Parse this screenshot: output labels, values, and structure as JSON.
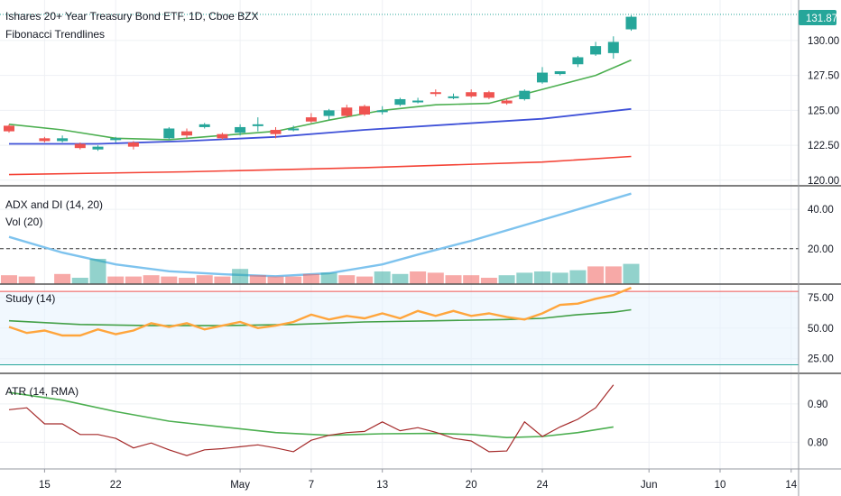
{
  "header": {
    "title": "Ishares 20+ Year Treasury Bond ETF, 1D, Cboe BZX",
    "subtitle": "Fibonacci Trendlines"
  },
  "colors": {
    "up": "#26a69a",
    "down": "#ef5350",
    "ma_green": "#4caf50",
    "ma_blue": "#3f51d8",
    "ma_red": "#f44336",
    "adx": "#7ec3ee",
    "study_orange": "#ffa53c",
    "study_green": "#43a047",
    "atr_brown": "#a52a2a",
    "atr_green": "#4caf50",
    "price_label_bg": "#26a69a"
  },
  "chart_data": [
    {
      "type": "candlestick",
      "pane": "price",
      "title": "Ishares 20+ Year Treasury Bond ETF, 1D, Cboe BZX",
      "yticks": [
        "120.00",
        "122.50",
        "125.00",
        "127.50",
        "130.00"
      ],
      "ylim": [
        119.6,
        132.9
      ],
      "last_price": "131.87",
      "candles": [
        {
          "x": 0,
          "o": 123.9,
          "h": 124.0,
          "l": 123.4,
          "c": 123.5
        },
        {
          "x": 2,
          "o": 123.0,
          "h": 123.1,
          "l": 122.7,
          "c": 122.8
        },
        {
          "x": 3,
          "o": 122.8,
          "h": 123.2,
          "l": 122.7,
          "c": 123.0
        },
        {
          "x": 4,
          "o": 122.6,
          "h": 122.7,
          "l": 122.2,
          "c": 122.3
        },
        {
          "x": 5,
          "o": 122.2,
          "h": 122.5,
          "l": 122.1,
          "c": 122.4
        },
        {
          "x": 6,
          "o": 122.9,
          "h": 123.1,
          "l": 122.7,
          "c": 123.0
        },
        {
          "x": 7,
          "o": 122.7,
          "h": 122.8,
          "l": 122.2,
          "c": 122.4
        },
        {
          "x": 9,
          "o": 123.0,
          "h": 123.8,
          "l": 122.9,
          "c": 123.7
        },
        {
          "x": 10,
          "o": 123.5,
          "h": 123.7,
          "l": 123.0,
          "c": 123.2
        },
        {
          "x": 11,
          "o": 123.8,
          "h": 124.1,
          "l": 123.7,
          "c": 124.0
        },
        {
          "x": 12,
          "o": 123.3,
          "h": 123.4,
          "l": 122.9,
          "c": 123.0
        },
        {
          "x": 13,
          "o": 123.4,
          "h": 124.0,
          "l": 123.2,
          "c": 123.8
        },
        {
          "x": 14,
          "o": 123.9,
          "h": 124.5,
          "l": 123.5,
          "c": 124.0
        },
        {
          "x": 15,
          "o": 123.6,
          "h": 123.8,
          "l": 123.0,
          "c": 123.3
        },
        {
          "x": 16,
          "o": 123.6,
          "h": 123.9,
          "l": 123.5,
          "c": 123.7
        },
        {
          "x": 17,
          "o": 124.5,
          "h": 124.8,
          "l": 124.1,
          "c": 124.2
        },
        {
          "x": 18,
          "o": 124.6,
          "h": 125.1,
          "l": 124.3,
          "c": 125.0
        },
        {
          "x": 19,
          "o": 125.2,
          "h": 125.4,
          "l": 124.5,
          "c": 124.6
        },
        {
          "x": 20,
          "o": 125.3,
          "h": 125.4,
          "l": 124.6,
          "c": 124.7
        },
        {
          "x": 21,
          "o": 125.0,
          "h": 125.3,
          "l": 124.7,
          "c": 125.0
        },
        {
          "x": 22,
          "o": 125.4,
          "h": 125.9,
          "l": 125.3,
          "c": 125.8
        },
        {
          "x": 23,
          "o": 125.7,
          "h": 125.9,
          "l": 125.5,
          "c": 125.7
        },
        {
          "x": 24,
          "o": 126.3,
          "h": 126.5,
          "l": 126.0,
          "c": 126.2
        },
        {
          "x": 25,
          "o": 126.0,
          "h": 126.2,
          "l": 125.8,
          "c": 126.0
        },
        {
          "x": 26,
          "o": 126.3,
          "h": 126.5,
          "l": 125.9,
          "c": 126.0
        },
        {
          "x": 27,
          "o": 126.3,
          "h": 126.4,
          "l": 125.8,
          "c": 125.9
        },
        {
          "x": 28,
          "o": 125.7,
          "h": 125.8,
          "l": 125.4,
          "c": 125.5
        },
        {
          "x": 29,
          "o": 125.8,
          "h": 126.5,
          "l": 125.7,
          "c": 126.4
        },
        {
          "x": 30,
          "o": 127.0,
          "h": 128.1,
          "l": 126.9,
          "c": 127.7
        },
        {
          "x": 31,
          "o": 127.6,
          "h": 127.8,
          "l": 127.5,
          "c": 127.8
        },
        {
          "x": 32,
          "o": 128.3,
          "h": 128.9,
          "l": 128.1,
          "c": 128.8
        },
        {
          "x": 33,
          "o": 129.0,
          "h": 129.9,
          "l": 128.9,
          "c": 129.6
        },
        {
          "x": 34,
          "o": 129.1,
          "h": 130.3,
          "l": 128.7,
          "c": 129.9
        },
        {
          "x": 35,
          "o": 130.8,
          "h": 131.8,
          "l": 130.7,
          "c": 131.7
        }
      ],
      "ma_green": [
        [
          0,
          124.0
        ],
        [
          3,
          123.6
        ],
        [
          6,
          123.0
        ],
        [
          9,
          122.9
        ],
        [
          12,
          123.2
        ],
        [
          15,
          123.5
        ],
        [
          18,
          124.3
        ],
        [
          21,
          125.0
        ],
        [
          24,
          125.4
        ],
        [
          27,
          125.5
        ],
        [
          30,
          126.5
        ],
        [
          33,
          127.5
        ],
        [
          35,
          128.6
        ]
      ],
      "ma_blue": [
        [
          0,
          122.6
        ],
        [
          5,
          122.6
        ],
        [
          10,
          122.8
        ],
        [
          15,
          123.1
        ],
        [
          20,
          123.6
        ],
        [
          25,
          124.0
        ],
        [
          30,
          124.4
        ],
        [
          35,
          125.1
        ]
      ],
      "ma_red": [
        [
          0,
          120.4
        ],
        [
          10,
          120.6
        ],
        [
          20,
          120.9
        ],
        [
          30,
          121.3
        ],
        [
          35,
          121.7
        ]
      ]
    },
    {
      "type": "line",
      "pane": "adx",
      "title": "ADX and DI (14, 20)",
      "subtitle": "Vol (20)",
      "yticks": [
        "20.00",
        "40.00"
      ],
      "ylim": [
        2,
        52
      ],
      "threshold": 20,
      "series": [
        {
          "values": [
            [
              0,
              26
            ],
            [
              3,
              18
            ],
            [
              6,
              12
            ],
            [
              9,
              8.5
            ],
            [
              12,
              7
            ],
            [
              15,
              6
            ],
            [
              18,
              7.5
            ],
            [
              21,
              12
            ],
            [
              23,
              17
            ],
            [
              26,
              24
            ],
            [
              29,
              32
            ],
            [
              32,
              40
            ],
            [
              35,
              48
            ]
          ]
        }
      ],
      "volume": [
        {
          "x": 0,
          "v": 0.35,
          "up": false
        },
        {
          "x": 1,
          "v": 0.3,
          "up": false
        },
        {
          "x": 3,
          "v": 0.4,
          "up": false
        },
        {
          "x": 4,
          "v": 0.25,
          "up": true
        },
        {
          "x": 5,
          "v": 1.0,
          "up": true
        },
        {
          "x": 6,
          "v": 0.3,
          "up": false
        },
        {
          "x": 7,
          "v": 0.3,
          "up": false
        },
        {
          "x": 8,
          "v": 0.35,
          "up": false
        },
        {
          "x": 9,
          "v": 0.3,
          "up": false
        },
        {
          "x": 10,
          "v": 0.25,
          "up": false
        },
        {
          "x": 11,
          "v": 0.35,
          "up": false
        },
        {
          "x": 12,
          "v": 0.3,
          "up": false
        },
        {
          "x": 13,
          "v": 0.6,
          "up": true
        },
        {
          "x": 14,
          "v": 0.35,
          "up": false
        },
        {
          "x": 15,
          "v": 0.3,
          "up": false
        },
        {
          "x": 16,
          "v": 0.3,
          "up": false
        },
        {
          "x": 17,
          "v": 0.4,
          "up": false
        },
        {
          "x": 18,
          "v": 0.45,
          "up": true
        },
        {
          "x": 19,
          "v": 0.35,
          "up": false
        },
        {
          "x": 20,
          "v": 0.3,
          "up": false
        },
        {
          "x": 21,
          "v": 0.5,
          "up": true
        },
        {
          "x": 22,
          "v": 0.4,
          "up": true
        },
        {
          "x": 23,
          "v": 0.5,
          "up": false
        },
        {
          "x": 24,
          "v": 0.45,
          "up": false
        },
        {
          "x": 25,
          "v": 0.35,
          "up": false
        },
        {
          "x": 26,
          "v": 0.35,
          "up": false
        },
        {
          "x": 27,
          "v": 0.25,
          "up": false
        },
        {
          "x": 28,
          "v": 0.35,
          "up": true
        },
        {
          "x": 29,
          "v": 0.45,
          "up": true
        },
        {
          "x": 30,
          "v": 0.5,
          "up": true
        },
        {
          "x": 31,
          "v": 0.45,
          "up": true
        },
        {
          "x": 32,
          "v": 0.55,
          "up": true
        },
        {
          "x": 33,
          "v": 0.7,
          "up": false
        },
        {
          "x": 34,
          "v": 0.7,
          "up": false
        },
        {
          "x": 35,
          "v": 0.8,
          "up": true
        }
      ]
    },
    {
      "type": "line",
      "pane": "study",
      "title": "Study (14)",
      "yticks": [
        "25.00",
        "50.00",
        "75.00"
      ],
      "ylim": [
        13,
        86
      ],
      "overbought": 80,
      "oversold": 20,
      "series": [
        {
          "values": [
            [
              0,
              51
            ],
            [
              1,
              46
            ],
            [
              2,
              48
            ],
            [
              3,
              44
            ],
            [
              4,
              44
            ],
            [
              5,
              49
            ],
            [
              6,
              45
            ],
            [
              7,
              48
            ],
            [
              8,
              54
            ],
            [
              9,
              51
            ],
            [
              10,
              54
            ],
            [
              11,
              49
            ],
            [
              12,
              52
            ],
            [
              13,
              55
            ],
            [
              14,
              50
            ],
            [
              15,
              52
            ],
            [
              16,
              55
            ],
            [
              17,
              61
            ],
            [
              18,
              57
            ],
            [
              19,
              60
            ],
            [
              20,
              58
            ],
            [
              21,
              62
            ],
            [
              22,
              58
            ],
            [
              23,
              64
            ],
            [
              24,
              60
            ],
            [
              25,
              64
            ],
            [
              26,
              60
            ],
            [
              27,
              62
            ],
            [
              28,
              59
            ],
            [
              29,
              57
            ],
            [
              30,
              62
            ],
            [
              31,
              69
            ],
            [
              32,
              70
            ],
            [
              33,
              74
            ],
            [
              34,
              77
            ],
            [
              35,
              83
            ]
          ]
        },
        {
          "values": [
            [
              0,
              56
            ],
            [
              4,
              53
            ],
            [
              8,
              52
            ],
            [
              12,
              52
            ],
            [
              16,
              53
            ],
            [
              20,
              55
            ],
            [
              24,
              56
            ],
            [
              28,
              57
            ],
            [
              30,
              58
            ],
            [
              32,
              61
            ],
            [
              34,
              63
            ],
            [
              35,
              65
            ]
          ]
        }
      ]
    },
    {
      "type": "line",
      "pane": "atr",
      "title": "ATR (14, RMA)",
      "yticks": [
        "0.80",
        "0.90"
      ],
      "ylim": [
        0.73,
        0.98
      ],
      "series": [
        {
          "values": [
            [
              0,
              0.885
            ],
            [
              1,
              0.89
            ],
            [
              2,
              0.848
            ],
            [
              3,
              0.848
            ],
            [
              4,
              0.82
            ],
            [
              5,
              0.82
            ],
            [
              6,
              0.81
            ],
            [
              7,
              0.785
            ],
            [
              8,
              0.798
            ],
            [
              9,
              0.78
            ],
            [
              10,
              0.765
            ],
            [
              11,
              0.78
            ],
            [
              12,
              0.783
            ],
            [
              13,
              0.788
            ],
            [
              14,
              0.793
            ],
            [
              15,
              0.785
            ],
            [
              16,
              0.775
            ],
            [
              17,
              0.805
            ],
            [
              18,
              0.818
            ],
            [
              19,
              0.825
            ],
            [
              20,
              0.828
            ],
            [
              21,
              0.853
            ],
            [
              22,
              0.83
            ],
            [
              23,
              0.838
            ],
            [
              24,
              0.826
            ],
            [
              25,
              0.81
            ],
            [
              26,
              0.803
            ],
            [
              27,
              0.775
            ],
            [
              28,
              0.777
            ],
            [
              29,
              0.853
            ],
            [
              30,
              0.815
            ],
            [
              31,
              0.84
            ],
            [
              32,
              0.86
            ],
            [
              33,
              0.89
            ],
            [
              34,
              0.95
            ]
          ]
        },
        {
          "values": [
            [
              0,
              0.93
            ],
            [
              3,
              0.91
            ],
            [
              6,
              0.88
            ],
            [
              9,
              0.855
            ],
            [
              12,
              0.84
            ],
            [
              15,
              0.825
            ],
            [
              18,
              0.818
            ],
            [
              21,
              0.822
            ],
            [
              24,
              0.823
            ],
            [
              26,
              0.82
            ],
            [
              28,
              0.812
            ],
            [
              30,
              0.815
            ],
            [
              32,
              0.825
            ],
            [
              34,
              0.84
            ]
          ]
        }
      ]
    }
  ],
  "x_axis": {
    "labels": [
      {
        "x": 2,
        "text": "15"
      },
      {
        "x": 6,
        "text": "22"
      },
      {
        "x": 13,
        "text": "May"
      },
      {
        "x": 17,
        "text": "7"
      },
      {
        "x": 21,
        "text": "13"
      },
      {
        "x": 26,
        "text": "20"
      },
      {
        "x": 30,
        "text": "24"
      },
      {
        "x": 36,
        "text": "Jun"
      },
      {
        "x": 40,
        "text": "10"
      },
      {
        "x": 44,
        "text": "14"
      }
    ]
  }
}
